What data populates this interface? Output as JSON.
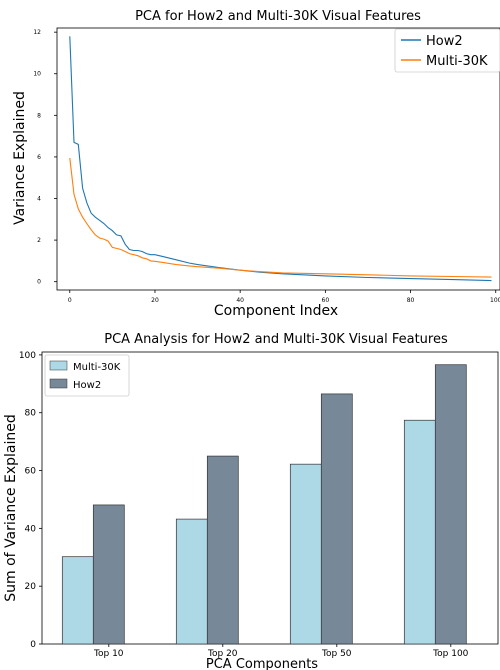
{
  "chart_data": [
    {
      "type": "line",
      "title": "PCA for How2 and Multi-30K Visual Features",
      "xlabel": "Component Index",
      "ylabel": "Variance Explained",
      "xlim": [
        -3,
        101
      ],
      "ylim": [
        -0.4,
        12.2
      ],
      "xticks": [
        0,
        20,
        40,
        60,
        80,
        100
      ],
      "yticks": [
        0,
        2,
        4,
        6,
        8,
        10,
        12
      ],
      "legend_position": "top-right",
      "grid": false,
      "series": [
        {
          "name": "How2",
          "color": "#1f77b4",
          "x": [
            0,
            1,
            2,
            3,
            4,
            5,
            6,
            7,
            8,
            9,
            10,
            11,
            12,
            13,
            14,
            15,
            16,
            17,
            18,
            19,
            20,
            22,
            25,
            28,
            30,
            35,
            40,
            45,
            50,
            60,
            70,
            80,
            90,
            99
          ],
          "values": [
            11.8,
            6.7,
            6.6,
            4.5,
            3.8,
            3.3,
            3.1,
            2.95,
            2.8,
            2.6,
            2.45,
            2.25,
            2.2,
            1.8,
            1.55,
            1.5,
            1.5,
            1.45,
            1.35,
            1.3,
            1.3,
            1.2,
            1.05,
            0.9,
            0.82,
            0.68,
            0.55,
            0.45,
            0.38,
            0.28,
            0.2,
            0.15,
            0.1,
            0.05
          ]
        },
        {
          "name": "Multi-30K",
          "color": "#ff7f0e",
          "x": [
            0,
            1,
            2,
            3,
            4,
            5,
            6,
            7,
            8,
            9,
            10,
            11,
            12,
            13,
            14,
            15,
            16,
            17,
            18,
            19,
            20,
            22,
            25,
            28,
            30,
            35,
            40,
            45,
            50,
            60,
            70,
            80,
            90,
            99
          ],
          "values": [
            5.95,
            4.2,
            3.5,
            3.1,
            2.8,
            2.5,
            2.25,
            2.1,
            2.05,
            1.95,
            1.65,
            1.6,
            1.55,
            1.45,
            1.35,
            1.3,
            1.25,
            1.15,
            1.1,
            1.0,
            0.98,
            0.92,
            0.82,
            0.76,
            0.72,
            0.65,
            0.55,
            0.48,
            0.42,
            0.38,
            0.33,
            0.28,
            0.25,
            0.22
          ]
        }
      ]
    },
    {
      "type": "bar",
      "title": "PCA Analysis for How2 and Multi-30K Visual Features",
      "xlabel": "PCA Components",
      "ylabel": "Sum of Variance Explained",
      "ylim": [
        0,
        101
      ],
      "yticks": [
        0,
        20,
        40,
        60,
        80,
        100
      ],
      "legend_position": "top-left",
      "grid": false,
      "categories": [
        "Top 10",
        "Top 20",
        "Top 50",
        "Top 100"
      ],
      "series": [
        {
          "name": "Multi-30K",
          "color": "#add8e6",
          "values": [
            30.2,
            43.2,
            62.2,
            77.4
          ]
        },
        {
          "name": "How2",
          "color": "#778899",
          "values": [
            48.1,
            65.0,
            86.5,
            96.6
          ]
        }
      ]
    }
  ]
}
